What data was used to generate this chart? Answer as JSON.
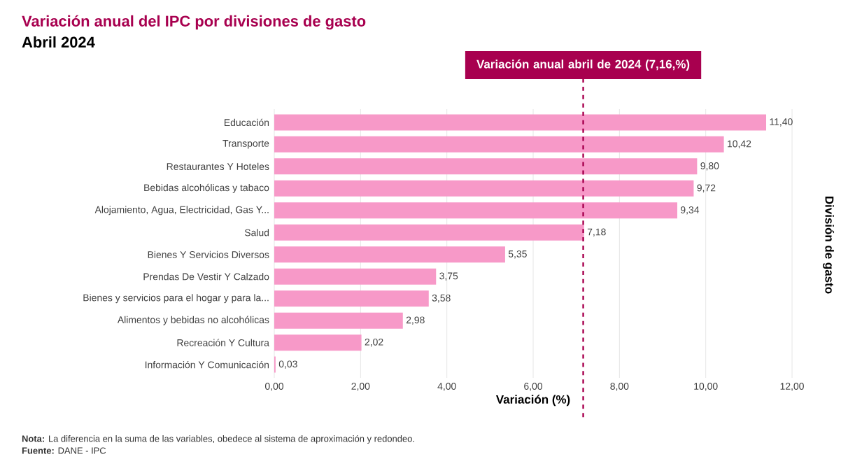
{
  "chart_data": {
    "type": "bar",
    "orientation": "horizontal",
    "title": "Variación anual del IPC por divisiones de gasto",
    "subtitle": "Abril 2024",
    "xlabel": "Variación (%)",
    "ylabel": "División de gasto",
    "categories": [
      "Educación",
      "Transporte",
      "Restaurantes Y Hoteles",
      "Bebidas alcohólicas y tabaco",
      "Alojamiento, Agua, Electricidad, Gas Y...",
      "Salud",
      "Bienes Y Servicios Diversos",
      "Prendas De Vestir Y Calzado",
      "Bienes y servicios para el hogar y para la...",
      "Alimentos y bebidas no alcohólicas",
      "Recreación Y Cultura",
      "Información Y Comunicación"
    ],
    "values": [
      11.4,
      10.42,
      9.8,
      9.72,
      9.34,
      7.18,
      5.35,
      3.75,
      3.58,
      2.98,
      2.02,
      0.03
    ],
    "value_labels": [
      "11,40",
      "10,42",
      "9,80",
      "9,72",
      "9,34",
      "7,18",
      "5,35",
      "3,75",
      "3,58",
      "2,98",
      "2,02",
      "0,03"
    ],
    "color": "#f799c8",
    "xlim": [
      0,
      12
    ],
    "xticks": [
      {
        "value": 0,
        "label": "0,00"
      },
      {
        "value": 2,
        "label": "2,00"
      },
      {
        "value": 4,
        "label": "4,00"
      },
      {
        "value": 6,
        "label": "6,00"
      },
      {
        "value": 8,
        "label": "8,00"
      },
      {
        "value": 10,
        "label": "10,00"
      },
      {
        "value": 12,
        "label": "12,00"
      }
    ],
    "grid": "x",
    "ref_lines": [
      {
        "axis": "x",
        "value": 7.16,
        "label": "Variación anual abril de 2024 (7,16,%)",
        "color": "#a8004f",
        "line_style": "dashed"
      }
    ],
    "annotations": [
      "**Nota:** La diferencia en la suma de las variables, obedece al sistema de aproximación y redondeo.",
      "**Fuente:** DANE - IPC"
    ]
  }
}
